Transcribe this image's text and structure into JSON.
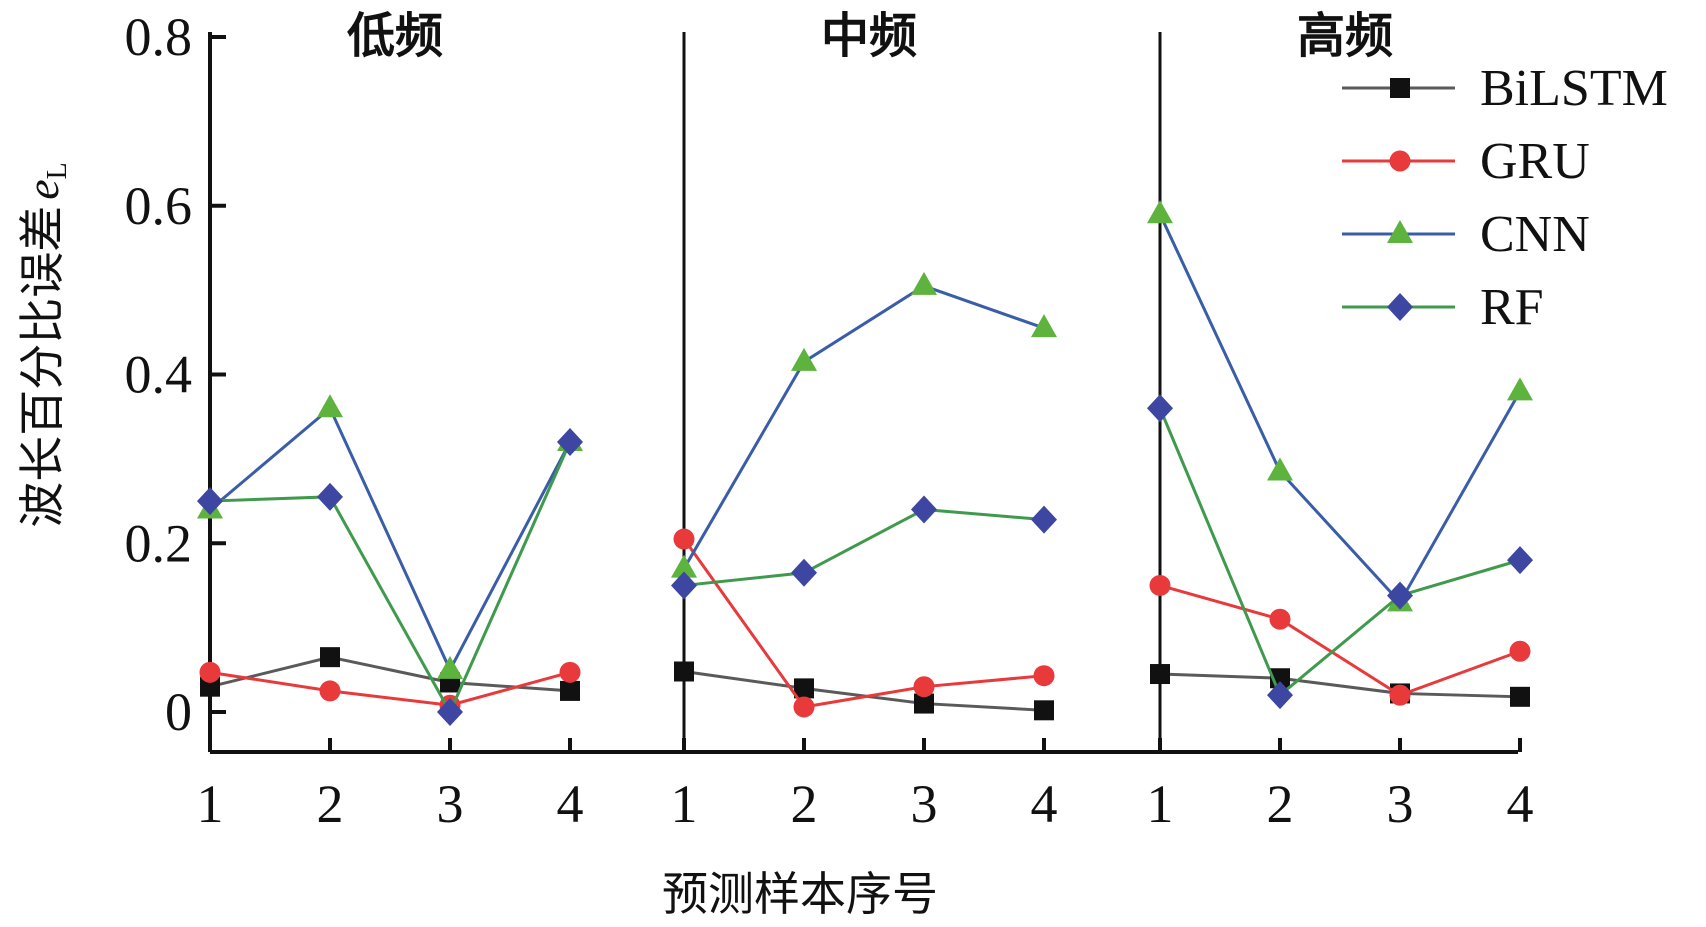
{
  "chart_data": {
    "type": "line",
    "ylabel_main": "波长百分比误差",
    "ylabel_var": "e",
    "ylabel_sub": "L",
    "xlabel": "预测样本序号",
    "ylim": [
      -0.05,
      0.8
    ],
    "yticks": [
      0.8,
      0.6,
      0.4,
      0.2,
      0
    ],
    "ytick_labels": [
      "0.8",
      "0.6",
      "0.4",
      "0.2",
      "0"
    ],
    "groups": [
      {
        "label": "低频",
        "ticks": [
          "1",
          "2",
          "3",
          "4"
        ]
      },
      {
        "label": "中频",
        "ticks": [
          "1",
          "2",
          "3",
          "4"
        ]
      },
      {
        "label": "高频",
        "ticks": [
          "1",
          "2",
          "3",
          "4"
        ]
      }
    ],
    "legend_position": "top-right",
    "series": [
      {
        "name": "BiLSTM",
        "marker": "square",
        "line_color": "#5a5a5a",
        "marker_color": "#111111",
        "values": [
          [
            0.03,
            0.065,
            0.035,
            0.025
          ],
          [
            0.048,
            0.028,
            0.01,
            0.002
          ],
          [
            0.045,
            0.04,
            0.022,
            0.018
          ]
        ]
      },
      {
        "name": "GRU",
        "marker": "circle",
        "line_color": "#e8393b",
        "marker_color": "#e8393b",
        "values": [
          [
            0.047,
            0.025,
            0.008,
            0.047
          ],
          [
            0.205,
            0.006,
            0.03,
            0.043
          ],
          [
            0.15,
            0.11,
            0.02,
            0.072
          ]
        ]
      },
      {
        "name": "CNN",
        "marker": "triangle",
        "line_color": "#3a5da8",
        "marker_color": "#5db33d",
        "values": [
          [
            0.24,
            0.36,
            0.05,
            0.32
          ],
          [
            0.17,
            0.415,
            0.505,
            0.455
          ],
          [
            0.59,
            0.285,
            0.13,
            0.38
          ]
        ]
      },
      {
        "name": "RF",
        "marker": "diamond",
        "line_color": "#3f9a4d",
        "marker_color": "#3d46a0",
        "values": [
          [
            0.25,
            0.255,
            0.0,
            0.32
          ],
          [
            0.15,
            0.165,
            0.24,
            0.228
          ],
          [
            0.36,
            0.02,
            0.138,
            0.18
          ]
        ]
      }
    ]
  }
}
